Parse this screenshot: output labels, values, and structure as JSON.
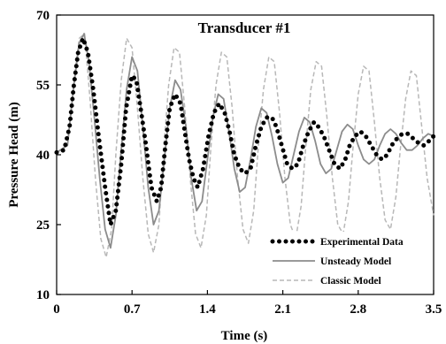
{
  "chart_data": {
    "type": "line",
    "title": "Transducer #1",
    "xlabel": "Time (s)",
    "ylabel": "Pressure Head (m)",
    "xlim": [
      0,
      3.5
    ],
    "ylim": [
      10,
      70
    ],
    "x_ticks": [
      "0",
      "0.7",
      "1.4",
      "2.1",
      "2.8",
      "3.5"
    ],
    "y_ticks": [
      "10",
      "25",
      "40",
      "55",
      "70"
    ],
    "grid": false,
    "legend_position": "bottom-right",
    "series": [
      {
        "name": "Experimental Data",
        "style": "dotted",
        "color": "#000000",
        "x": [
          0,
          0.07,
          0.12,
          0.16,
          0.2,
          0.245,
          0.29,
          0.34,
          0.39,
          0.45,
          0.5,
          0.55,
          0.6,
          0.645,
          0.7,
          0.74,
          0.78,
          0.83,
          0.88,
          0.93,
          0.97,
          1.01,
          1.05,
          1.1,
          1.15,
          1.19,
          1.23,
          1.27,
          1.31,
          1.36,
          1.41,
          1.46,
          1.51,
          1.56,
          1.605,
          1.65,
          1.7,
          1.75,
          1.8,
          1.85,
          1.9,
          1.95,
          2.0,
          2.04,
          2.09,
          2.14,
          2.19,
          2.24,
          2.29,
          2.34,
          2.39,
          2.43,
          2.48,
          2.53,
          2.58,
          2.63,
          2.68,
          2.72,
          2.77,
          2.82,
          2.87,
          2.92,
          2.97,
          3.02,
          3.07,
          3.11,
          3.16,
          3.21,
          3.26,
          3.31,
          3.36,
          3.41,
          3.46,
          3.5
        ],
        "y": [
          40.5,
          41,
          46,
          55,
          62,
          65,
          62,
          54,
          44,
          33,
          25,
          28,
          38,
          50,
          57,
          56,
          50,
          42,
          33,
          30,
          33,
          42,
          50,
          53,
          51,
          45,
          39,
          35,
          33,
          37,
          44,
          49,
          51,
          49,
          45,
          40,
          37,
          36,
          37,
          42,
          46,
          48,
          48,
          46,
          42,
          38,
          37,
          38,
          42,
          45,
          47,
          46,
          44,
          41,
          38,
          37,
          39,
          42,
          44,
          45,
          44,
          42,
          40,
          39,
          40,
          42,
          43.5,
          44.5,
          44.5,
          43.5,
          42.5,
          42,
          43,
          44
        ]
      },
      {
        "name": "Unsteady Model",
        "style": "solid",
        "color": "#8c8c8c",
        "x": [
          0,
          0.1,
          0.16,
          0.21,
          0.255,
          0.3,
          0.35,
          0.4,
          0.45,
          0.5,
          0.55,
          0.6,
          0.65,
          0.7,
          0.75,
          0.8,
          0.85,
          0.9,
          0.95,
          1.0,
          1.05,
          1.1,
          1.15,
          1.2,
          1.25,
          1.3,
          1.35,
          1.4,
          1.45,
          1.5,
          1.55,
          1.6,
          1.65,
          1.7,
          1.75,
          1.8,
          1.85,
          1.9,
          1.95,
          2.0,
          2.05,
          2.1,
          2.15,
          2.2,
          2.25,
          2.3,
          2.35,
          2.4,
          2.45,
          2.5,
          2.55,
          2.6,
          2.65,
          2.7,
          2.75,
          2.8,
          2.85,
          2.9,
          2.95,
          3.0,
          3.05,
          3.1,
          3.15,
          3.2,
          3.25,
          3.3,
          3.35,
          3.4,
          3.45,
          3.5
        ],
        "y": [
          40.5,
          42,
          55,
          64,
          66,
          60,
          48,
          35,
          24,
          20,
          27,
          41,
          54,
          61,
          58,
          46,
          33,
          25,
          28,
          39,
          50,
          56,
          54,
          46,
          35,
          28,
          30,
          39,
          48,
          53,
          52,
          45,
          37,
          32,
          33,
          39,
          46,
          50,
          49,
          44,
          38,
          34,
          35,
          40,
          45,
          48,
          47,
          43,
          38,
          36,
          37,
          41,
          45,
          46.5,
          45.5,
          42,
          39,
          38,
          39,
          42,
          44.5,
          45.5,
          44.5,
          42.5,
          41,
          41,
          42,
          43.5,
          44.5,
          44
        ]
      },
      {
        "name": "Classic Model",
        "style": "dashed",
        "color": "#b8b8b8",
        "x": [
          0,
          0.1,
          0.16,
          0.21,
          0.26,
          0.31,
          0.36,
          0.41,
          0.46,
          0.51,
          0.55,
          0.6,
          0.65,
          0.7,
          0.75,
          0.8,
          0.85,
          0.9,
          0.95,
          0.99,
          1.04,
          1.09,
          1.14,
          1.19,
          1.24,
          1.29,
          1.34,
          1.39,
          1.43,
          1.48,
          1.53,
          1.58,
          1.63,
          1.68,
          1.73,
          1.78,
          1.83,
          1.87,
          1.92,
          1.97,
          2.02,
          2.07,
          2.12,
          2.17,
          2.22,
          2.27,
          2.31,
          2.36,
          2.41,
          2.46,
          2.51,
          2.56,
          2.61,
          2.66,
          2.71,
          2.75,
          2.8,
          2.85,
          2.9,
          2.95,
          3.0,
          3.05,
          3.1,
          3.15,
          3.19,
          3.24,
          3.29,
          3.34,
          3.39,
          3.44,
          3.5
        ],
        "y": [
          40.5,
          42,
          56,
          65,
          66,
          52,
          35,
          22,
          18,
          24,
          40,
          56,
          65,
          63,
          50,
          35,
          23,
          19,
          25,
          40,
          55,
          63,
          62,
          50,
          35,
          23,
          20,
          27,
          41,
          55,
          62,
          61,
          50,
          35,
          24,
          21,
          28,
          41,
          54,
          61,
          60,
          49,
          35,
          25,
          22,
          29,
          41,
          54,
          60,
          59,
          48,
          35,
          25,
          23,
          30,
          41,
          53,
          59,
          58,
          47,
          35,
          26,
          24,
          31,
          41,
          52,
          58,
          57,
          46,
          35,
          27
        ]
      }
    ]
  }
}
